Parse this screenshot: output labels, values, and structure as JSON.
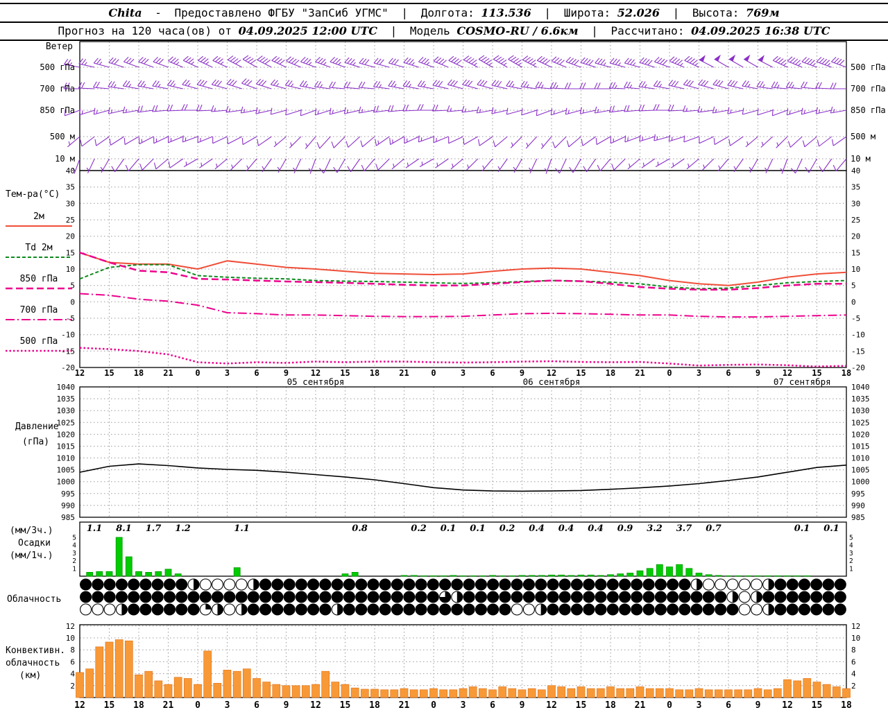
{
  "ui": {
    "pipe": "|",
    "dash": "-"
  },
  "header1": {
    "station": "Chita",
    "provider": "Предоставлено ФГБУ \"ЗапСиб УГМС\"",
    "lon_label": "Долгота:",
    "lon_value": "113.536",
    "lat_label": "Широта:",
    "lat_value": "52.026",
    "alt_label": "Высота:",
    "alt_value": "769м"
  },
  "header2": {
    "forecast_label": "Прогноз на 120 часа(ов) от",
    "forecast_time": "04.09.2025 12:00 UTC",
    "model_label": "Модель",
    "model_value": "COSMO-RU / 6.6км",
    "calc_label": "Рассчитано:",
    "calc_time": "04.09.2025 16:38 UTC"
  },
  "axis": {
    "time_labels": [
      "12",
      "15",
      "18",
      "21",
      "0",
      "3",
      "6",
      "9",
      "12",
      "15",
      "18",
      "21",
      "0",
      "3",
      "6",
      "9",
      "12",
      "15",
      "18",
      "21",
      "0",
      "3",
      "6",
      "9",
      "12",
      "15",
      "18"
    ],
    "dates": [
      {
        "label": "05 сентября",
        "i": 8
      },
      {
        "label": "06 сентября",
        "i": 16
      },
      {
        "label": "07 сентября",
        "i": 24.5
      }
    ]
  },
  "chart_data": [
    {
      "id": "wind",
      "type": "wind-barbs",
      "title": "Ветер",
      "color": "#8b2fc9",
      "levels": [
        {
          "label": "500 гПа",
          "speeds": [
            25,
            25,
            30,
            30,
            35,
            35,
            40,
            40,
            35,
            35,
            30,
            30,
            35,
            40,
            45,
            45,
            40,
            40,
            35,
            35,
            40,
            45,
            50,
            50,
            45,
            45,
            40
          ],
          "dirs": [
            280,
            285,
            290,
            290,
            295,
            295,
            300,
            295,
            290,
            290,
            285,
            285,
            290,
            295,
            300,
            300,
            295,
            290,
            285,
            285,
            290,
            295,
            300,
            300,
            295,
            290,
            290
          ]
        },
        {
          "label": "700 гПа",
          "speeds": [
            20,
            20,
            25,
            25,
            25,
            30,
            30,
            25,
            25,
            20,
            20,
            25,
            25,
            30,
            30,
            25,
            25,
            20,
            20,
            25,
            25,
            30,
            30,
            25,
            25,
            20,
            20
          ],
          "dirs": [
            270,
            275,
            280,
            280,
            285,
            285,
            290,
            285,
            280,
            275,
            275,
            280,
            280,
            285,
            285,
            280,
            275,
            270,
            270,
            275,
            280,
            285,
            285,
            280,
            275,
            275,
            270
          ]
        },
        {
          "label": "850 гПа",
          "speeds": [
            10,
            15,
            15,
            20,
            20,
            15,
            15,
            10,
            10,
            15,
            15,
            20,
            20,
            15,
            15,
            10,
            10,
            15,
            15,
            20,
            20,
            15,
            15,
            10,
            10,
            15,
            15
          ],
          "dirs": [
            250,
            255,
            260,
            265,
            270,
            265,
            260,
            255,
            250,
            255,
            260,
            265,
            270,
            265,
            260,
            255,
            250,
            255,
            260,
            265,
            270,
            265,
            260,
            255,
            250,
            255,
            260
          ]
        },
        {
          "label": "500 м",
          "speeds": [
            5,
            10,
            10,
            15,
            15,
            10,
            10,
            5,
            5,
            10,
            10,
            15,
            15,
            10,
            10,
            5,
            5,
            10,
            10,
            15,
            15,
            10,
            10,
            5,
            5,
            10,
            10
          ],
          "dirs": [
            230,
            235,
            240,
            245,
            250,
            245,
            240,
            230,
            220,
            225,
            230,
            240,
            250,
            245,
            235,
            225,
            220,
            230,
            240,
            250,
            255,
            250,
            240,
            230,
            225,
            230,
            235
          ]
        },
        {
          "label": "10 м",
          "speeds": [
            5,
            5,
            10,
            10,
            5,
            5,
            5,
            5,
            5,
            10,
            10,
            5,
            5,
            5,
            5,
            5,
            5,
            10,
            10,
            5,
            5,
            5,
            5,
            5,
            5,
            10,
            10
          ],
          "dirs": [
            200,
            210,
            220,
            230,
            240,
            230,
            220,
            210,
            200,
            210,
            220,
            230,
            240,
            230,
            220,
            210,
            200,
            210,
            220,
            230,
            240,
            230,
            220,
            210,
            200,
            210,
            220
          ]
        }
      ]
    },
    {
      "id": "temperature",
      "type": "line",
      "title": "Тем-ра(°C)",
      "ylim": [
        -20,
        40
      ],
      "yticks": [
        40,
        35,
        30,
        25,
        20,
        15,
        10,
        5,
        0,
        -5,
        -10,
        -15,
        -20
      ],
      "series": [
        {
          "name": "2м",
          "color": "#ef4e38",
          "dash": "",
          "width": 2,
          "values": [
            15,
            12,
            11.5,
            11.5,
            10,
            12.5,
            11.5,
            10.5,
            10,
            9.3,
            8.7,
            8.5,
            8.3,
            8.5,
            9.3,
            10,
            10.3,
            10,
            9,
            8,
            6.5,
            5.5,
            5,
            6,
            7.5,
            8.5,
            9
          ]
        },
        {
          "name": "Td 2м",
          "color": "#0c8a1c",
          "dash": "5 3",
          "width": 2,
          "values": [
            7,
            10.5,
            11.3,
            11.3,
            8,
            7.5,
            7.2,
            7,
            6.5,
            6.3,
            6.2,
            6,
            5.8,
            5.6,
            5.8,
            6.2,
            6.5,
            6.3,
            6,
            5.5,
            4.5,
            4,
            4.2,
            5,
            5.8,
            6.2,
            6.5
          ]
        },
        {
          "name": "850 гПа",
          "color": "#ec008c",
          "dash": "10 5",
          "width": 2.5,
          "values": [
            15,
            12,
            9.5,
            9,
            7,
            6.8,
            6.5,
            6.2,
            6,
            5.8,
            5.5,
            5.2,
            5,
            5,
            5.5,
            6,
            6.5,
            6.3,
            5.5,
            4.5,
            4,
            3.7,
            3.7,
            4.2,
            5,
            5.5,
            5.5
          ]
        },
        {
          "name": "700 гПа",
          "color": "#ec008c",
          "dash": "13 4 2 4",
          "width": 2,
          "values": [
            2.5,
            2,
            0.8,
            0.2,
            -1,
            -3.3,
            -3.6,
            -4,
            -4,
            -4.2,
            -4.4,
            -4.5,
            -4.5,
            -4.4,
            -4,
            -3.6,
            -3.5,
            -3.6,
            -3.8,
            -4,
            -4,
            -4.4,
            -4.6,
            -4.6,
            -4.4,
            -4.2,
            -4
          ]
        },
        {
          "name": "500 гПа",
          "color": "#ec008c",
          "dash": "2.5 3",
          "width": 2.5,
          "values": [
            -14,
            -14.4,
            -15,
            -16,
            -18.4,
            -18.8,
            -18.4,
            -18.6,
            -18.2,
            -18.4,
            -18.2,
            -18.2,
            -18.4,
            -18.5,
            -18.4,
            -18.2,
            -18.1,
            -18.3,
            -18.4,
            -18.3,
            -18.8,
            -19.4,
            -19.2,
            -19.1,
            -19.3,
            -19.7,
            -19.5
          ]
        }
      ]
    },
    {
      "id": "pressure",
      "type": "line",
      "title1": "Давление",
      "title2": "(гПа)",
      "color": "#000000",
      "ylim": [
        985,
        1040
      ],
      "yticks": [
        1040,
        1035,
        1030,
        1025,
        1020,
        1015,
        1010,
        1005,
        1000,
        995,
        990,
        985
      ],
      "values": [
        1004,
        1006.5,
        1007.5,
        1006.8,
        1005.8,
        1005.2,
        1004.8,
        1004,
        1003,
        1002,
        1000.8,
        999.2,
        997.5,
        996.5,
        996.1,
        996,
        996.1,
        996.3,
        996.8,
        997.4,
        998.2,
        999.2,
        1000.5,
        1002,
        1004,
        1006,
        1007
      ]
    },
    {
      "id": "precipitation",
      "type": "bar",
      "title1": "(мм/3ч.)",
      "title2": "Осадки",
      "title3": "(мм/1ч.)",
      "color": "#00cc00",
      "yticks": [
        5,
        4,
        3,
        2,
        1
      ],
      "labels3h": [
        {
          "i": 0,
          "v": "1.1"
        },
        {
          "i": 1,
          "v": "8.1"
        },
        {
          "i": 2,
          "v": "1.7"
        },
        {
          "i": 3,
          "v": "1.2"
        },
        {
          "i": 5,
          "v": "1.1"
        },
        {
          "i": 9,
          "v": "0.8"
        },
        {
          "i": 11,
          "v": "0.2"
        },
        {
          "i": 12,
          "v": "0.1"
        },
        {
          "i": 13,
          "v": "0.1"
        },
        {
          "i": 14,
          "v": "0.2"
        },
        {
          "i": 15,
          "v": "0.4"
        },
        {
          "i": 16,
          "v": "0.4"
        },
        {
          "i": 17,
          "v": "0.4"
        },
        {
          "i": 18,
          "v": "0.9"
        },
        {
          "i": 19,
          "v": "3.2"
        },
        {
          "i": 20,
          "v": "3.7"
        },
        {
          "i": 21,
          "v": "0.7"
        },
        {
          "i": 24,
          "v": "0.1"
        },
        {
          "i": 25,
          "v": "0.1"
        }
      ],
      "hourly": [
        0,
        0.5,
        0.6,
        0.6,
        5.0,
        2.5,
        0.6,
        0.5,
        0.6,
        0.9,
        0.3,
        0,
        0,
        0,
        0,
        0,
        1.1,
        0,
        0,
        0,
        0,
        0,
        0,
        0,
        0,
        0,
        0,
        0.3,
        0.5,
        0,
        0,
        0,
        0,
        0.1,
        0.1,
        0.05,
        0.05,
        0.05,
        0.1,
        0.05,
        0.05,
        0.05,
        0.1,
        0.05,
        0.05,
        0.1,
        0.1,
        0.1,
        0.15,
        0.15,
        0.1,
        0.15,
        0.15,
        0.1,
        0.2,
        0.3,
        0.4,
        0.7,
        1.0,
        1.5,
        1.2,
        1.5,
        1.0,
        0.4,
        0.2,
        0.1,
        0.05,
        0.05,
        0.05,
        0.05,
        0.05,
        0.05,
        0.05,
        0.05,
        0.05,
        0,
        0,
        0,
        0
      ]
    },
    {
      "id": "cloudiness",
      "type": "heatmap",
      "title": "Облачность",
      "rows": [
        "4444444442000024444444444444444444444444444444444442000002444444",
        "4444444444444444444444444444443244444444444444444444442024444444",
        "0002444444120244444442444444444444440024444444444444444002444444"
      ]
    },
    {
      "id": "convective",
      "type": "bar",
      "title1": "Конвективн.",
      "title2": "облачность",
      "title3": "(км)",
      "color": "#f89938",
      "yticks": [
        12,
        10,
        8,
        6,
        4,
        2
      ],
      "hourly": [
        4.2,
        4.8,
        8.5,
        9.3,
        9.7,
        9.5,
        3.8,
        4.4,
        2.8,
        2.2,
        3.4,
        3.2,
        2.2,
        7.8,
        2.4,
        4.6,
        4.4,
        4.8,
        3.2,
        2.6,
        2.2,
        2.0,
        2.0,
        2.0,
        2.2,
        4.4,
        2.6,
        2.2,
        1.6,
        1.4,
        1.4,
        1.3,
        1.3,
        1.5,
        1.3,
        1.3,
        1.5,
        1.3,
        1.3,
        1.5,
        1.8,
        1.5,
        1.3,
        1.8,
        1.5,
        1.3,
        1.5,
        1.3,
        2.0,
        1.8,
        1.5,
        1.8,
        1.5,
        1.5,
        1.8,
        1.5,
        1.5,
        1.8,
        1.5,
        1.5,
        1.5,
        1.3,
        1.3,
        1.5,
        1.3,
        1.3,
        1.3,
        1.3,
        1.3,
        1.5,
        1.3,
        1.5,
        3.0,
        2.8,
        3.2,
        2.6,
        2.2,
        1.8,
        1.5
      ]
    }
  ]
}
